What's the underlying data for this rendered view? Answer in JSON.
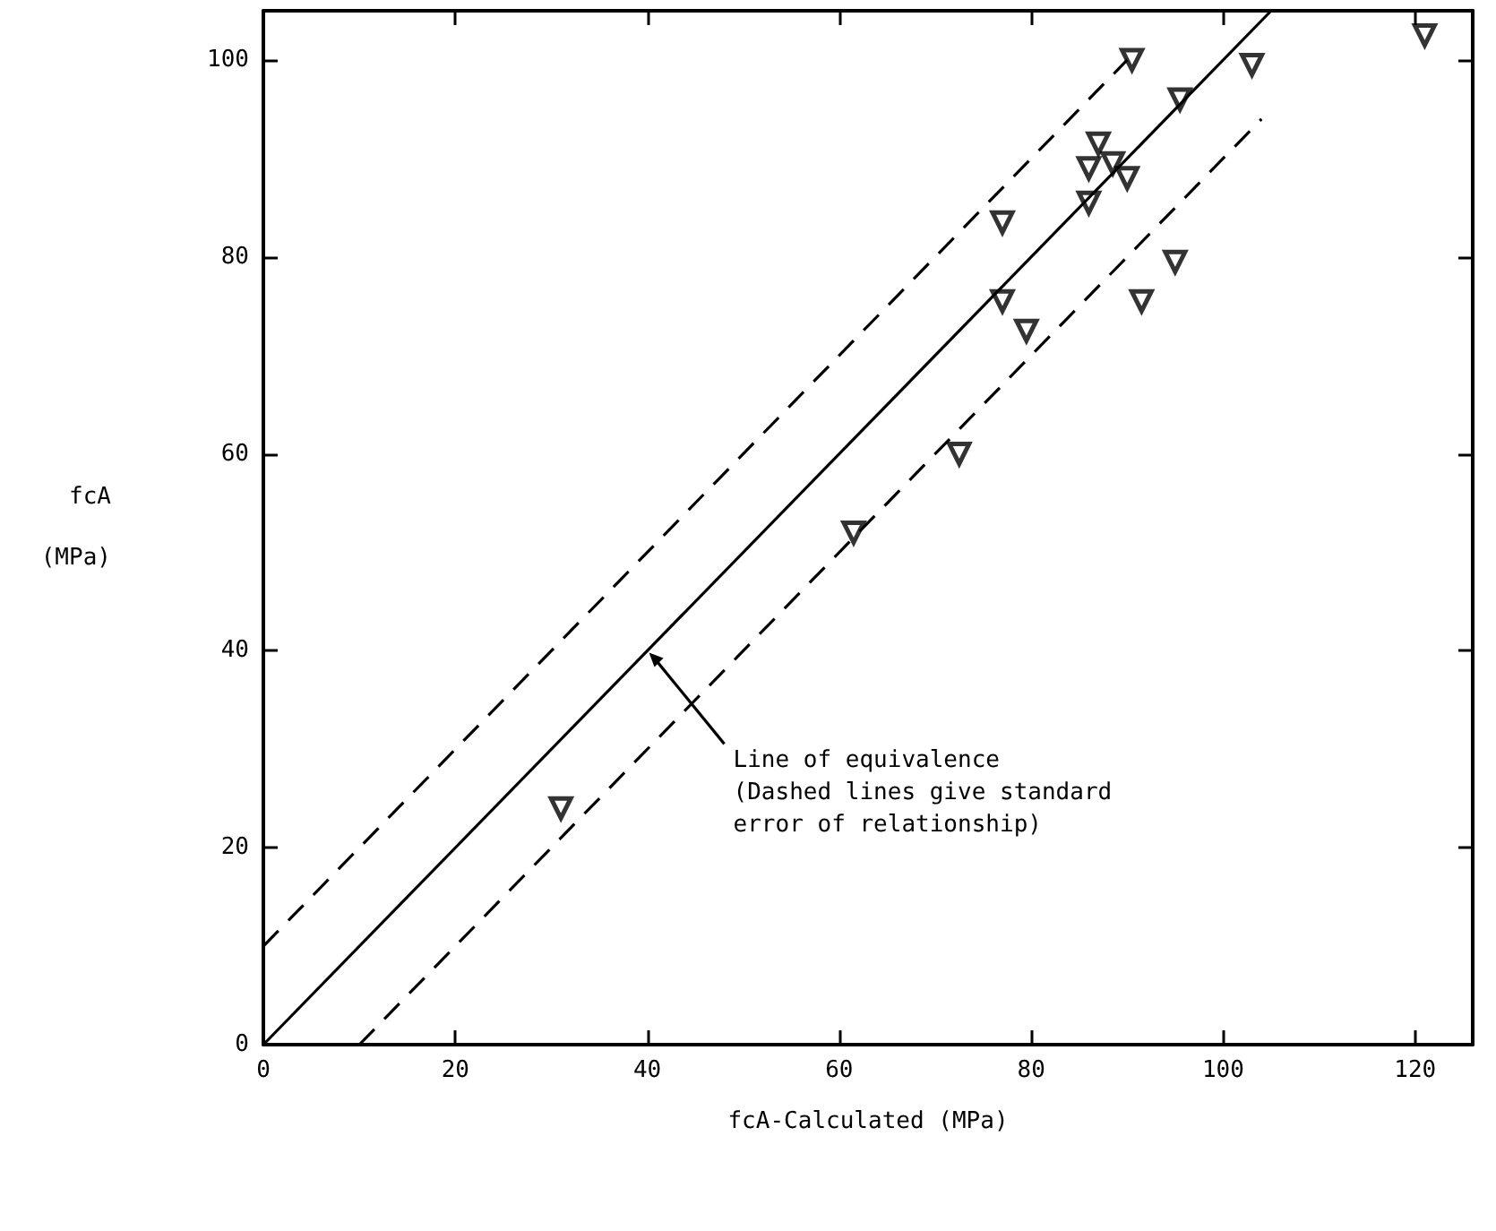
{
  "chart_data": {
    "type": "scatter",
    "xlabel": "fcA-Calculated (MPa)",
    "ylabel": "fcA (MPa)",
    "series": [
      {
        "color": "#000000",
        "marker": "triangle",
        "x": [
          31,
          61.5,
          72.5,
          77,
          77,
          79.5,
          86,
          86,
          87,
          88.5,
          90,
          90.5,
          91.5,
          95,
          95.5,
          103,
          121
        ],
        "values": [
          24,
          52,
          60,
          83.5,
          75.5,
          72.5,
          85.5,
          89,
          91.5,
          89.5,
          88,
          100,
          75.5,
          79.5,
          96,
          99.5,
          102.5
        ]
      },
      {
        "type": "line",
        "color": "#000000",
        "marker": "none",
        "line_style": "solid",
        "x": [
          0,
          105
        ],
        "values": [
          0,
          105
        ]
      },
      {
        "type": "line",
        "color": "#000000",
        "marker": "none",
        "line_style": "dashed",
        "x": [
          0,
          90
        ],
        "values": [
          10,
          100
        ]
      },
      {
        "type": "line",
        "color": "#000000",
        "marker": "none",
        "line_style": "dashed",
        "x": [
          10,
          104
        ],
        "values": [
          0,
          94
        ]
      }
    ],
    "annotations": [
      {
        "text": "Line of equivalence\n(Dashed lines give standard\nerror of relationship)",
        "x": 40,
        "y": 40
      }
    ],
    "xlim": [
      0,
      126
    ],
    "ylim": [
      0,
      105
    ],
    "xticks": [
      0,
      20,
      40,
      60,
      80,
      100,
      120
    ],
    "yticks": [
      0,
      20,
      40,
      60,
      80,
      100
    ],
    "grid": false
  }
}
